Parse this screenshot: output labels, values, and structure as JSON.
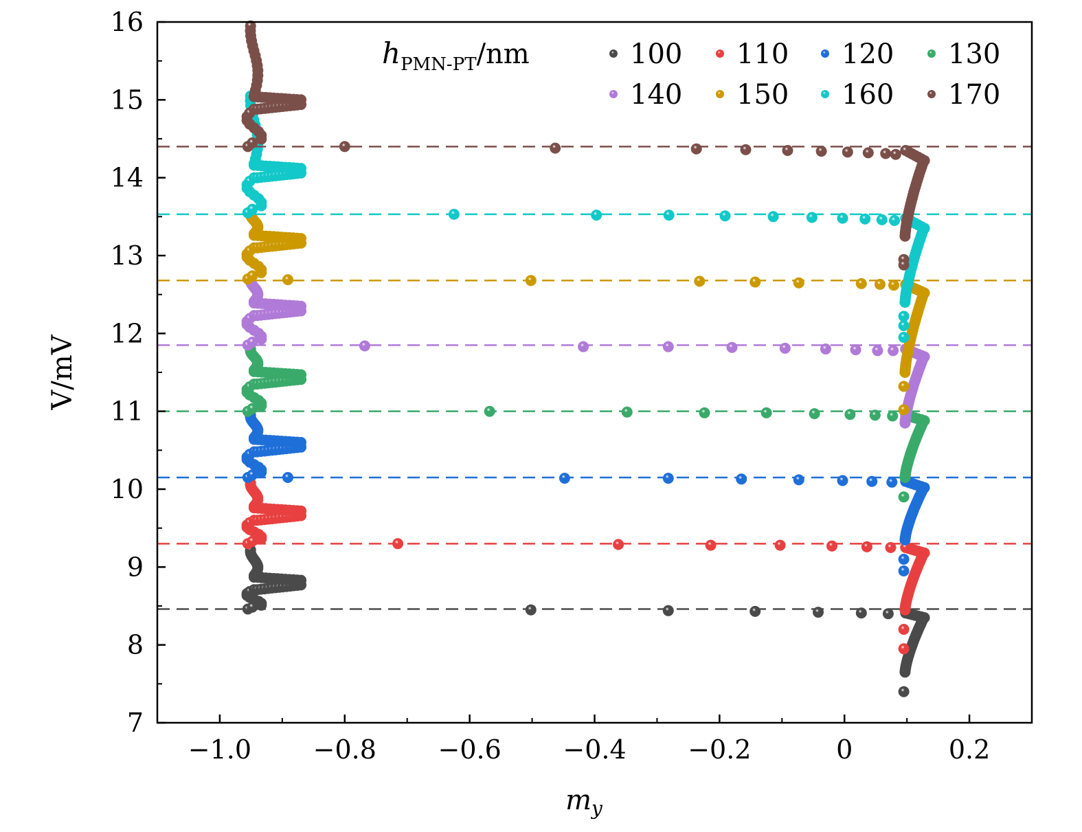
{
  "chart_data": {
    "type": "scatter",
    "title": "",
    "xlabel": "m",
    "xlabel_sub": "y",
    "ylabel": "V/mV",
    "xlim": [
      -1.1,
      0.3
    ],
    "ylim": [
      7,
      16
    ],
    "xticks": [
      {
        "value": -1.0,
        "label": "−1.0"
      },
      {
        "value": -0.8,
        "label": "−0.8"
      },
      {
        "value": -0.6,
        "label": "−0.6"
      },
      {
        "value": -0.4,
        "label": "−0.4"
      },
      {
        "value": -0.2,
        "label": "−0.2"
      },
      {
        "value": 0,
        "label": "0"
      },
      {
        "value": 0.2,
        "label": "0.2"
      }
    ],
    "xminor": [
      -0.9,
      -0.7,
      -0.5,
      -0.3,
      -0.1,
      0.1
    ],
    "yticks": [
      {
        "value": 7,
        "label": "7"
      },
      {
        "value": 8,
        "label": "8"
      },
      {
        "value": 9,
        "label": "9"
      },
      {
        "value": 10,
        "label": "10"
      },
      {
        "value": 11,
        "label": "11"
      },
      {
        "value": 12,
        "label": "12"
      },
      {
        "value": 13,
        "label": "13"
      },
      {
        "value": 14,
        "label": "14"
      },
      {
        "value": 15,
        "label": "15"
      },
      {
        "value": 16,
        "label": "16"
      }
    ],
    "yminor": [
      7.5,
      8.5,
      9.5,
      10.5,
      11.5,
      12.5,
      13.5,
      14.5,
      15.5
    ],
    "grid": false,
    "legend": {
      "placement": "top-right",
      "title_main": "h",
      "title_sub": "PMN-PT",
      "title_unit": "/nm",
      "columns": 4
    },
    "series": [
      {
        "name": "100",
        "color": "#4a4a4a",
        "threshold_V": 8.46,
        "sparse": [
          [
            -0.502,
            8.45
          ],
          [
            -0.282,
            8.44
          ],
          [
            -0.143,
            8.43
          ],
          [
            -0.042,
            8.42
          ],
          [
            0.027,
            8.41
          ],
          [
            0.07,
            8.4
          ]
        ],
        "left_cluster": {
          "v_start": 8.46,
          "v_peak": 8.79,
          "v_end": 9.22
        },
        "right_hook": {
          "v_bottom": 7.65,
          "v_top": 8.35,
          "v_extra": [
            7.4
          ]
        }
      },
      {
        "name": "110",
        "color": "#e84040",
        "threshold_V": 9.3,
        "sparse": [
          [
            -0.715,
            9.3
          ],
          [
            -0.362,
            9.29
          ],
          [
            -0.214,
            9.28
          ],
          [
            -0.103,
            9.28
          ],
          [
            -0.02,
            9.27
          ],
          [
            0.036,
            9.26
          ],
          [
            0.074,
            9.25
          ]
        ],
        "left_cluster": {
          "v_start": 9.3,
          "v_peak": 9.68,
          "v_end": 10.08
        },
        "right_hook": {
          "v_bottom": 8.45,
          "v_top": 9.18,
          "v_extra": [
            8.2,
            7.95
          ]
        }
      },
      {
        "name": "120",
        "color": "#1f6fd9",
        "threshold_V": 10.15,
        "sparse": [
          [
            -0.891,
            10.15
          ],
          [
            -0.448,
            10.14
          ],
          [
            -0.282,
            10.14
          ],
          [
            -0.165,
            10.13
          ],
          [
            -0.073,
            10.12
          ],
          [
            -0.003,
            10.11
          ],
          [
            0.044,
            10.1
          ],
          [
            0.076,
            10.09
          ]
        ],
        "left_cluster": {
          "v_start": 10.15,
          "v_peak": 10.56,
          "v_end": 10.95
        },
        "right_hook": {
          "v_bottom": 9.35,
          "v_top": 10.02,
          "v_extra": [
            9.1,
            8.95
          ]
        }
      },
      {
        "name": "130",
        "color": "#3aaa6a",
        "threshold_V": 11.0,
        "sparse": [
          [
            -0.568,
            11.0
          ],
          [
            -0.348,
            10.99
          ],
          [
            -0.224,
            10.98
          ],
          [
            -0.125,
            10.98
          ],
          [
            -0.048,
            10.97
          ],
          [
            0.009,
            10.96
          ],
          [
            0.049,
            10.95
          ],
          [
            0.077,
            10.94
          ]
        ],
        "left_cluster": {
          "v_start": 11.0,
          "v_peak": 11.43,
          "v_end": 11.8
        },
        "right_hook": {
          "v_bottom": 10.15,
          "v_top": 10.88,
          "v_extra": [
            9.9
          ]
        }
      },
      {
        "name": "140",
        "color": "#b07ad8",
        "threshold_V": 11.85,
        "sparse": [
          [
            -0.768,
            11.84
          ],
          [
            -0.418,
            11.83
          ],
          [
            -0.282,
            11.83
          ],
          [
            -0.18,
            11.82
          ],
          [
            -0.095,
            11.81
          ],
          [
            -0.03,
            11.8
          ],
          [
            0.018,
            11.79
          ],
          [
            0.053,
            11.78
          ],
          [
            0.078,
            11.78
          ]
        ],
        "left_cluster": {
          "v_start": 11.85,
          "v_peak": 12.31,
          "v_end": 12.7
        },
        "right_hook": {
          "v_bottom": 10.85,
          "v_top": 11.7,
          "v_extra": []
        }
      },
      {
        "name": "150",
        "color": "#cc9900",
        "threshold_V": 12.68,
        "sparse": [
          [
            -0.891,
            12.69
          ],
          [
            -0.502,
            12.68
          ],
          [
            -0.232,
            12.67
          ],
          [
            -0.143,
            12.66
          ],
          [
            -0.073,
            12.65
          ],
          [
            0.027,
            12.64
          ],
          [
            0.057,
            12.63
          ],
          [
            0.079,
            12.62
          ]
        ],
        "left_cluster": {
          "v_start": 12.7,
          "v_peak": 13.18,
          "v_end": 13.55
        },
        "right_hook": {
          "v_bottom": 11.5,
          "v_top": 12.52,
          "v_extra": [
            11.32,
            11.02
          ]
        }
      },
      {
        "name": "160",
        "color": "#12c8c8",
        "threshold_V": 13.53,
        "sparse": [
          [
            -0.625,
            13.53
          ],
          [
            -0.397,
            13.52
          ],
          [
            -0.281,
            13.52
          ],
          [
            -0.191,
            13.51
          ],
          [
            -0.114,
            13.5
          ],
          [
            -0.052,
            13.49
          ],
          [
            -0.003,
            13.48
          ],
          [
            0.033,
            13.47
          ],
          [
            0.06,
            13.46
          ],
          [
            0.08,
            13.45
          ]
        ],
        "left_cluster": {
          "v_start": 13.55,
          "v_peak": 14.08,
          "v_end": 15.05
        },
        "right_hook": {
          "v_bottom": 12.4,
          "v_top": 13.35,
          "v_extra": [
            12.22,
            12.1,
            11.95
          ]
        }
      },
      {
        "name": "170",
        "color": "#7a4f4a",
        "threshold_V": 14.4,
        "sparse": [
          [
            -0.8,
            14.4
          ],
          [
            -0.463,
            14.38
          ],
          [
            -0.237,
            14.37
          ],
          [
            -0.158,
            14.36
          ],
          [
            -0.091,
            14.35
          ],
          [
            -0.037,
            14.34
          ],
          [
            0.005,
            14.33
          ],
          [
            0.038,
            14.32
          ],
          [
            0.066,
            14.31
          ],
          [
            0.082,
            14.3
          ]
        ],
        "left_cluster": {
          "v_start": 14.4,
          "v_peak": 14.96,
          "v_end": 15.95
        },
        "right_hook": {
          "v_bottom": 13.25,
          "v_top": 14.22,
          "v_extra": [
            12.95,
            12.88
          ]
        }
      }
    ]
  }
}
